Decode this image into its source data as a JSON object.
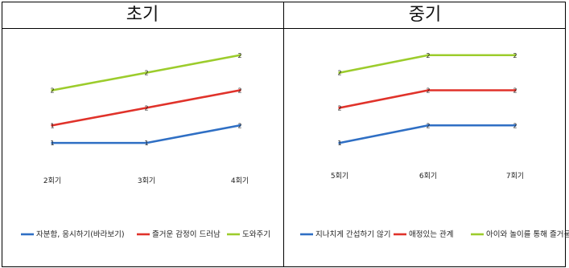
{
  "headers": {
    "left": "초기",
    "right": "중기"
  },
  "colors": {
    "blue": "#2f6fc4",
    "red": "#e0322a",
    "green": "#9ccc2c"
  },
  "chart_data": [
    {
      "type": "line",
      "categories": [
        "2회기",
        "3회기",
        "4회기"
      ],
      "series": [
        {
          "name": "자분함, 응시하기(바라보기)",
          "values": [
            1,
            1,
            1.5
          ],
          "labels": [
            "1",
            "1",
            "2"
          ]
        },
        {
          "name": "즐거운 감정이 드러남",
          "values": [
            1.5,
            2,
            2.5
          ],
          "labels": [
            "1",
            "2",
            "2"
          ]
        },
        {
          "name": "도와주기",
          "values": [
            2.5,
            3,
            3.5
          ],
          "labels": [
            "2",
            "2",
            "2"
          ]
        }
      ],
      "ylim": [
        0.5,
        3.7
      ],
      "legend": "bottom"
    },
    {
      "type": "line",
      "categories": [
        "5회기",
        "6회기",
        "7회기"
      ],
      "series": [
        {
          "name": "지나치게 간섭하기 않기",
          "values": [
            1,
            1.5,
            1.5
          ],
          "labels": [
            "1",
            "2",
            "2"
          ]
        },
        {
          "name": "애정있는 관계",
          "values": [
            2,
            2.5,
            2.5
          ],
          "labels": [
            "2",
            "2",
            "2"
          ]
        },
        {
          "name": "아이와 놀이를 통해 즐거움 느낌",
          "values": [
            3,
            3.5,
            3.5
          ],
          "labels": [
            "2",
            "2",
            "2"
          ]
        }
      ],
      "ylim": [
        0.5,
        3.7
      ],
      "legend": "bottom"
    }
  ]
}
